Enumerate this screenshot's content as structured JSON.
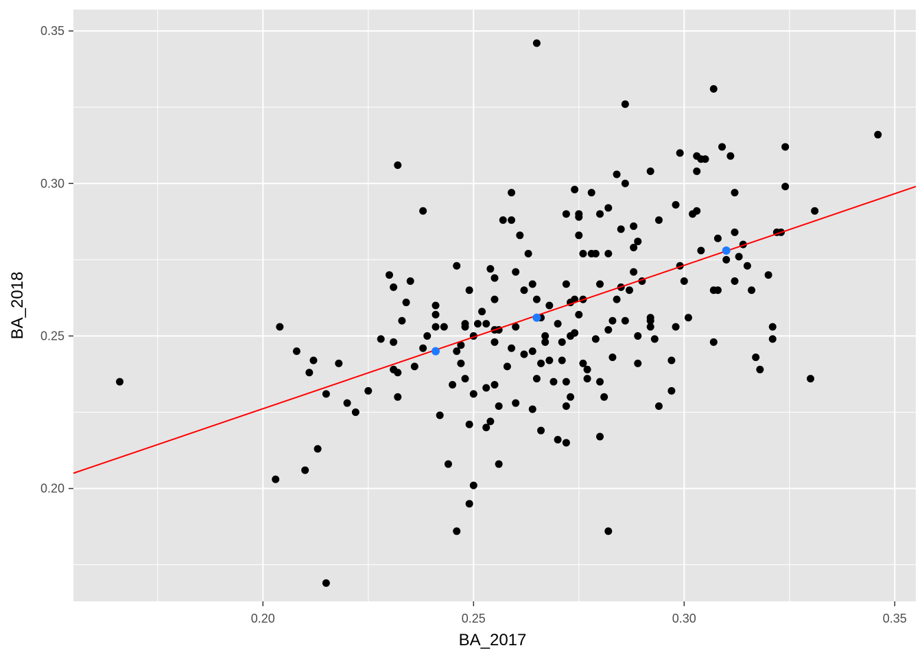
{
  "chart_data": {
    "type": "scatter",
    "title": "",
    "xlabel": "BA_2017",
    "ylabel": "BA_2018",
    "xlim": [
      0.155,
      0.355
    ],
    "ylim": [
      0.163,
      0.357
    ],
    "x_ticks": [
      0.2,
      0.25,
      0.3,
      0.35
    ],
    "x_tick_labels": [
      "0.20",
      "0.25",
      "0.30",
      "0.35"
    ],
    "y_ticks": [
      0.2,
      0.25,
      0.3,
      0.35
    ],
    "y_tick_labels": [
      "0.20",
      "0.25",
      "0.30",
      "0.35"
    ],
    "grid": true,
    "colors": {
      "panel": "#e5e5e5",
      "grid": "#ffffff",
      "points": "#000000",
      "highlight": "#1e7bff",
      "fit_line": "#ff0000"
    },
    "fit_line": {
      "x": [
        0.155,
        0.355
      ],
      "y": [
        0.205,
        0.299
      ]
    },
    "highlight_points": [
      {
        "x": 0.241,
        "y": 0.245
      },
      {
        "x": 0.265,
        "y": 0.256
      },
      {
        "x": 0.31,
        "y": 0.278
      }
    ],
    "points": [
      [
        0.166,
        0.235
      ],
      [
        0.203,
        0.203
      ],
      [
        0.204,
        0.253
      ],
      [
        0.208,
        0.245
      ],
      [
        0.21,
        0.206
      ],
      [
        0.211,
        0.238
      ],
      [
        0.212,
        0.242
      ],
      [
        0.213,
        0.213
      ],
      [
        0.215,
        0.231
      ],
      [
        0.215,
        0.169
      ],
      [
        0.218,
        0.241
      ],
      [
        0.22,
        0.228
      ],
      [
        0.222,
        0.225
      ],
      [
        0.225,
        0.232
      ],
      [
        0.228,
        0.249
      ],
      [
        0.23,
        0.27
      ],
      [
        0.231,
        0.248
      ],
      [
        0.231,
        0.266
      ],
      [
        0.231,
        0.239
      ],
      [
        0.232,
        0.23
      ],
      [
        0.232,
        0.306
      ],
      [
        0.232,
        0.238
      ],
      [
        0.233,
        0.255
      ],
      [
        0.234,
        0.261
      ],
      [
        0.235,
        0.268
      ],
      [
        0.236,
        0.24
      ],
      [
        0.238,
        0.246
      ],
      [
        0.238,
        0.291
      ],
      [
        0.239,
        0.25
      ],
      [
        0.241,
        0.26
      ],
      [
        0.241,
        0.253
      ],
      [
        0.241,
        0.257
      ],
      [
        0.242,
        0.224
      ],
      [
        0.243,
        0.253
      ],
      [
        0.244,
        0.208
      ],
      [
        0.245,
        0.234
      ],
      [
        0.246,
        0.273
      ],
      [
        0.246,
        0.186
      ],
      [
        0.246,
        0.245
      ],
      [
        0.247,
        0.241
      ],
      [
        0.247,
        0.247
      ],
      [
        0.248,
        0.253
      ],
      [
        0.248,
        0.236
      ],
      [
        0.248,
        0.254
      ],
      [
        0.249,
        0.265
      ],
      [
        0.249,
        0.195
      ],
      [
        0.249,
        0.221
      ],
      [
        0.25,
        0.25
      ],
      [
        0.25,
        0.231
      ],
      [
        0.25,
        0.201
      ],
      [
        0.251,
        0.254
      ],
      [
        0.252,
        0.258
      ],
      [
        0.253,
        0.254
      ],
      [
        0.253,
        0.22
      ],
      [
        0.253,
        0.233
      ],
      [
        0.254,
        0.272
      ],
      [
        0.254,
        0.222
      ],
      [
        0.255,
        0.234
      ],
      [
        0.255,
        0.248
      ],
      [
        0.255,
        0.252
      ],
      [
        0.255,
        0.262
      ],
      [
        0.255,
        0.269
      ],
      [
        0.256,
        0.227
      ],
      [
        0.256,
        0.208
      ],
      [
        0.256,
        0.252
      ],
      [
        0.257,
        0.288
      ],
      [
        0.258,
        0.24
      ],
      [
        0.259,
        0.246
      ],
      [
        0.259,
        0.297
      ],
      [
        0.259,
        0.288
      ],
      [
        0.26,
        0.228
      ],
      [
        0.26,
        0.253
      ],
      [
        0.26,
        0.271
      ],
      [
        0.261,
        0.283
      ],
      [
        0.262,
        0.244
      ],
      [
        0.262,
        0.265
      ],
      [
        0.263,
        0.277
      ],
      [
        0.264,
        0.267
      ],
      [
        0.264,
        0.245
      ],
      [
        0.264,
        0.226
      ],
      [
        0.265,
        0.346
      ],
      [
        0.265,
        0.236
      ],
      [
        0.265,
        0.262
      ],
      [
        0.266,
        0.241
      ],
      [
        0.266,
        0.219
      ],
      [
        0.266,
        0.256
      ],
      [
        0.267,
        0.248
      ],
      [
        0.267,
        0.25
      ],
      [
        0.268,
        0.26
      ],
      [
        0.268,
        0.242
      ],
      [
        0.269,
        0.235
      ],
      [
        0.27,
        0.254
      ],
      [
        0.27,
        0.216
      ],
      [
        0.271,
        0.242
      ],
      [
        0.271,
        0.248
      ],
      [
        0.272,
        0.227
      ],
      [
        0.272,
        0.267
      ],
      [
        0.272,
        0.215
      ],
      [
        0.272,
        0.235
      ],
      [
        0.272,
        0.29
      ],
      [
        0.273,
        0.23
      ],
      [
        0.273,
        0.25
      ],
      [
        0.273,
        0.261
      ],
      [
        0.274,
        0.298
      ],
      [
        0.274,
        0.251
      ],
      [
        0.274,
        0.262
      ],
      [
        0.275,
        0.283
      ],
      [
        0.275,
        0.29
      ],
      [
        0.275,
        0.289
      ],
      [
        0.275,
        0.257
      ],
      [
        0.276,
        0.277
      ],
      [
        0.276,
        0.241
      ],
      [
        0.276,
        0.262
      ],
      [
        0.277,
        0.239
      ],
      [
        0.277,
        0.236
      ],
      [
        0.278,
        0.277
      ],
      [
        0.278,
        0.297
      ],
      [
        0.279,
        0.277
      ],
      [
        0.279,
        0.249
      ],
      [
        0.28,
        0.29
      ],
      [
        0.28,
        0.217
      ],
      [
        0.28,
        0.235
      ],
      [
        0.28,
        0.267
      ],
      [
        0.281,
        0.23
      ],
      [
        0.282,
        0.277
      ],
      [
        0.282,
        0.292
      ],
      [
        0.282,
        0.252
      ],
      [
        0.282,
        0.186
      ],
      [
        0.283,
        0.255
      ],
      [
        0.283,
        0.243
      ],
      [
        0.284,
        0.262
      ],
      [
        0.284,
        0.303
      ],
      [
        0.285,
        0.266
      ],
      [
        0.285,
        0.285
      ],
      [
        0.286,
        0.255
      ],
      [
        0.286,
        0.326
      ],
      [
        0.286,
        0.3
      ],
      [
        0.287,
        0.265
      ],
      [
        0.288,
        0.286
      ],
      [
        0.288,
        0.279
      ],
      [
        0.288,
        0.271
      ],
      [
        0.289,
        0.281
      ],
      [
        0.289,
        0.25
      ],
      [
        0.289,
        0.241
      ],
      [
        0.29,
        0.268
      ],
      [
        0.292,
        0.256
      ],
      [
        0.292,
        0.255
      ],
      [
        0.292,
        0.304
      ],
      [
        0.292,
        0.253
      ],
      [
        0.293,
        0.249
      ],
      [
        0.294,
        0.227
      ],
      [
        0.294,
        0.288
      ],
      [
        0.297,
        0.242
      ],
      [
        0.297,
        0.232
      ],
      [
        0.298,
        0.293
      ],
      [
        0.298,
        0.253
      ],
      [
        0.299,
        0.31
      ],
      [
        0.299,
        0.273
      ],
      [
        0.3,
        0.268
      ],
      [
        0.301,
        0.256
      ],
      [
        0.302,
        0.29
      ],
      [
        0.303,
        0.291
      ],
      [
        0.303,
        0.309
      ],
      [
        0.303,
        0.304
      ],
      [
        0.304,
        0.308
      ],
      [
        0.304,
        0.278
      ],
      [
        0.305,
        0.308
      ],
      [
        0.307,
        0.331
      ],
      [
        0.307,
        0.248
      ],
      [
        0.307,
        0.265
      ],
      [
        0.308,
        0.265
      ],
      [
        0.308,
        0.282
      ],
      [
        0.309,
        0.312
      ],
      [
        0.31,
        0.275
      ],
      [
        0.311,
        0.309
      ],
      [
        0.312,
        0.268
      ],
      [
        0.312,
        0.297
      ],
      [
        0.312,
        0.284
      ],
      [
        0.313,
        0.276
      ],
      [
        0.314,
        0.28
      ],
      [
        0.315,
        0.273
      ],
      [
        0.316,
        0.265
      ],
      [
        0.317,
        0.243
      ],
      [
        0.318,
        0.239
      ],
      [
        0.32,
        0.27
      ],
      [
        0.321,
        0.253
      ],
      [
        0.321,
        0.249
      ],
      [
        0.322,
        0.284
      ],
      [
        0.323,
        0.284
      ],
      [
        0.324,
        0.312
      ],
      [
        0.324,
        0.299
      ],
      [
        0.33,
        0.236
      ],
      [
        0.331,
        0.291
      ],
      [
        0.346,
        0.316
      ]
    ]
  }
}
